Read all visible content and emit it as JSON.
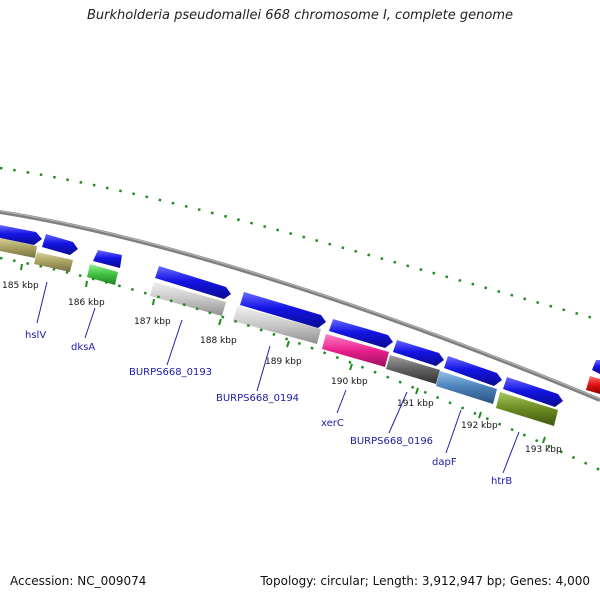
{
  "title": "Burkholderia pseudomallei 668 chromosome I, complete genome",
  "footer": {
    "accession": "Accession: NC_009074",
    "summary": "Topology: circular; Length: 3,912,947 bp; Genes: 4,000"
  },
  "ticks": [
    "185 kbp",
    "186 kbp",
    "187 kbp",
    "188 kbp",
    "189 kbp",
    "190 kbp",
    "191 kbp",
    "192 kbp",
    "193 kbp"
  ],
  "gene_labels": [
    "hslV",
    "dksA",
    "BURPS668_0193",
    "BURPS668_0194",
    "xerC",
    "BURPS668_0196",
    "dapF",
    "htrB"
  ],
  "colors": {
    "forward_arrow": "#1414e6",
    "backbone": "#808080",
    "gc_dots": "#1e8c1e",
    "olive": "#a8a060",
    "green": "#40c040",
    "light_gray": "#c8c8c8",
    "magenta": "#e8208c",
    "dark_gray": "#606060",
    "steel_blue": "#4a80b8",
    "olive_green": "#6a8a20",
    "red": "#e01010"
  }
}
